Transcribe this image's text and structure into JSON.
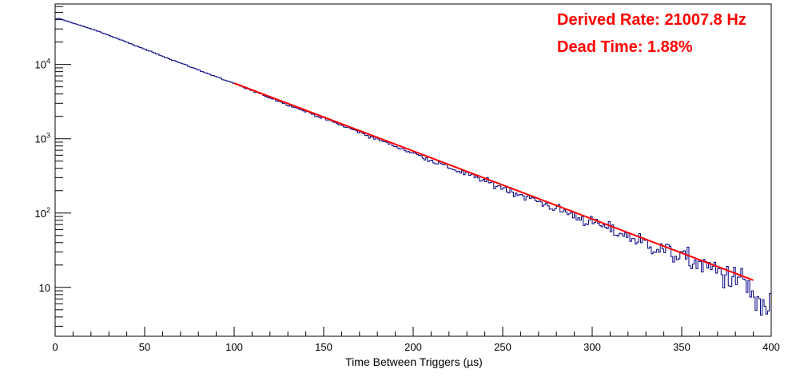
{
  "colors": {
    "histogram": "#000080",
    "fit": "#ff0000",
    "annotation": "#ff0000",
    "axis": "#000000"
  },
  "annotations": [
    {
      "text": "Derived Rate: 21007.8 Hz"
    },
    {
      "text": "Dead Time: 1.88%"
    }
  ],
  "chart_data": {
    "type": "line",
    "title": "",
    "xlabel": "Time Between Triggers (µs)",
    "ylabel": "",
    "xlim": [
      0,
      400
    ],
    "ylim": [
      2.2,
      65000
    ],
    "yscale": "log",
    "grid": false,
    "x_ticks": [
      "0",
      "50",
      "100",
      "150",
      "200",
      "250",
      "300",
      "350",
      "400"
    ],
    "y_ticks": [
      "10",
      "10^2",
      "10^3",
      "10^4"
    ],
    "series": [
      {
        "style": "histogram",
        "color": "#000080",
        "bin_width_us": 1,
        "x": [
          0,
          2,
          4,
          10,
          25,
          50,
          75,
          100,
          125,
          150,
          175,
          200,
          225,
          250,
          275,
          300,
          325,
          350,
          375,
          385,
          390,
          395,
          400
        ],
        "values": [
          40000,
          42000,
          40000,
          36000,
          27500,
          16000,
          9400,
          5500,
          3200,
          1880,
          1100,
          640,
          370,
          220,
          128,
          75,
          44,
          26,
          15,
          12,
          8,
          4,
          7
        ]
      },
      {
        "style": "fit",
        "color": "#ff0000",
        "x": [
          100,
          390
        ],
        "values": [
          5600,
          12.5
        ]
      }
    ]
  }
}
